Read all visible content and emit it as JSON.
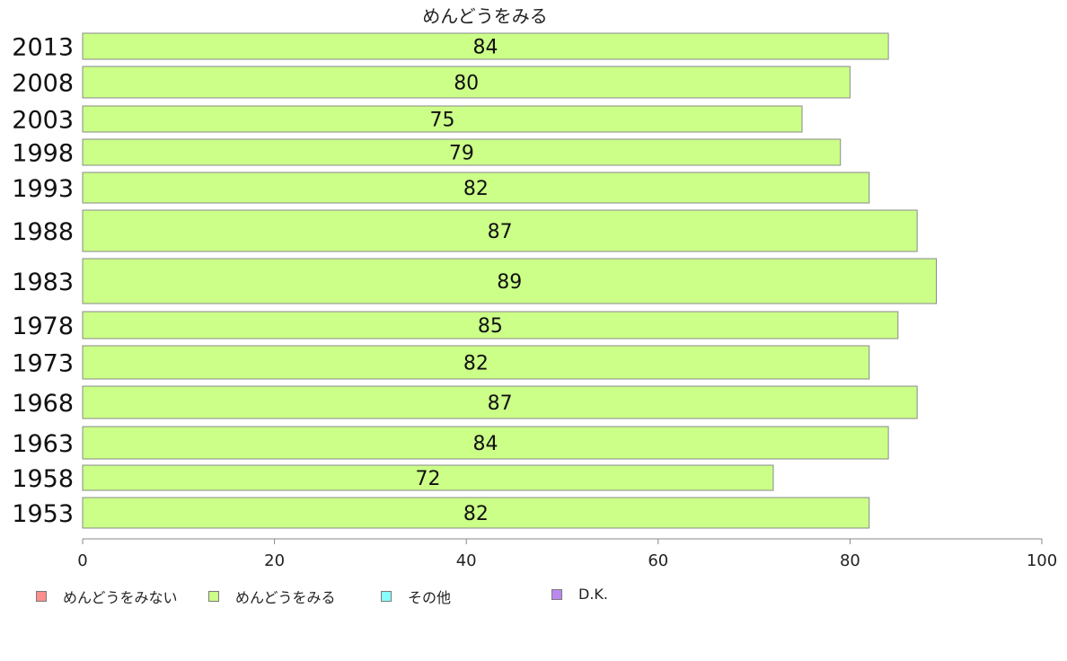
{
  "chart_data": {
    "type": "bar",
    "orientation": "horizontal",
    "title": "めんどうをみる",
    "categories": [
      "2013",
      "2008",
      "2003",
      "1998",
      "1993",
      "1988",
      "1983",
      "1978",
      "1973",
      "1968",
      "1963",
      "1958",
      "1953"
    ],
    "series": [
      {
        "name": "めんどうをみる",
        "color": "#ccff88",
        "values": [
          84,
          80,
          75,
          79,
          82,
          87,
          89,
          85,
          82,
          87,
          84,
          72,
          82
        ],
        "value_labels": [
          "84",
          "80",
          "75",
          "79",
          "82",
          "87",
          "89",
          "85",
          "82",
          "87",
          "84",
          "72",
          "82"
        ]
      }
    ],
    "xlim": [
      0,
      100
    ],
    "xticks": [
      0,
      20,
      40,
      60,
      80,
      100
    ],
    "xtick_labels": [
      "0",
      "20",
      "40",
      "60",
      "80",
      "100"
    ],
    "grid": false,
    "legend_position": "bottom-left",
    "legend": [
      {
        "label": "めんどうをみない",
        "color": "#ff8f8f"
      },
      {
        "label": "めんどうをみる",
        "color": "#ccff88"
      },
      {
        "label": "その他",
        "color": "#88ffff"
      },
      {
        "label": "D.K.",
        "color": "#bb88ee"
      }
    ]
  }
}
